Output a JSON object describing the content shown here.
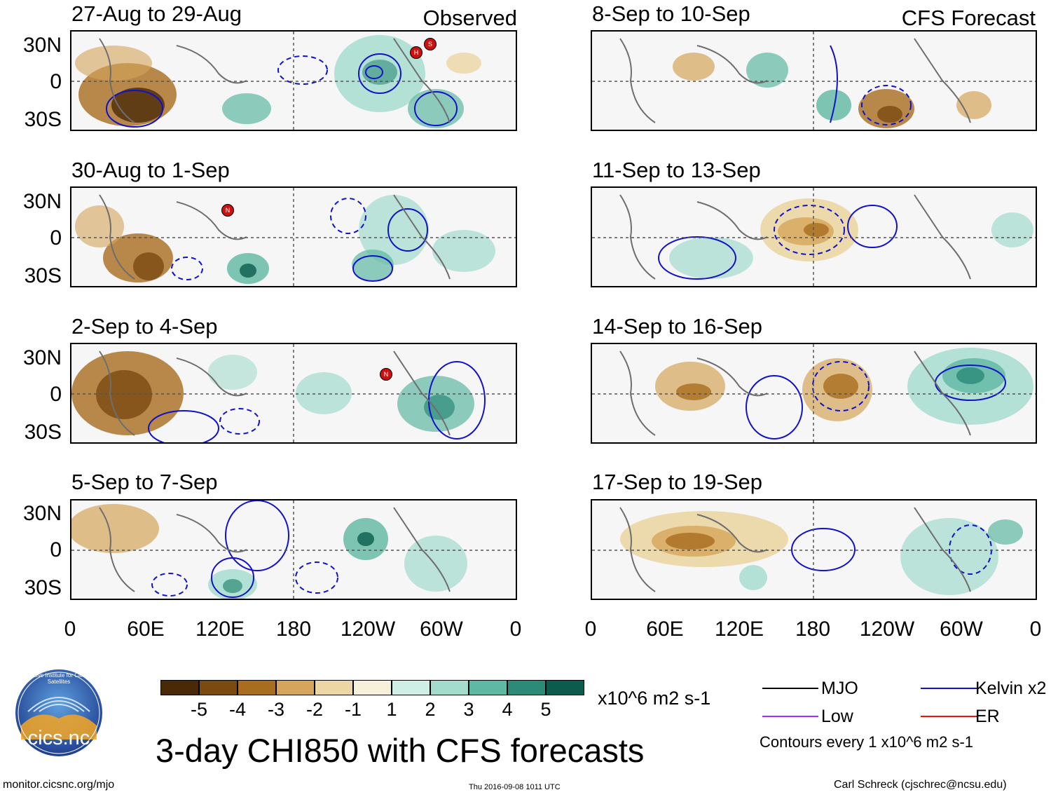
{
  "labels": {
    "observed": "Observed",
    "forecast": "CFS Forecast"
  },
  "panels_left": [
    {
      "title": "27-Aug to 29-Aug"
    },
    {
      "title": "30-Aug to 1-Sep"
    },
    {
      "title": "2-Sep to 4-Sep"
    },
    {
      "title": "5-Sep to 7-Sep"
    }
  ],
  "panels_right": [
    {
      "title": "8-Sep to 10-Sep"
    },
    {
      "title": "11-Sep to 13-Sep"
    },
    {
      "title": "14-Sep to 16-Sep"
    },
    {
      "title": "17-Sep to 19-Sep"
    }
  ],
  "lat_ticks": [
    "30N",
    "0",
    "30S"
  ],
  "lon_ticks": [
    "0",
    "60E",
    "120E",
    "180",
    "120W",
    "60W",
    "0"
  ],
  "storm_markers": [
    "H",
    "S",
    "N",
    "N"
  ],
  "colorbar": {
    "labels": [
      "-5",
      "-4",
      "-3",
      "-2",
      "-1",
      "1",
      "2",
      "3",
      "4",
      "5"
    ],
    "colors": [
      "#4a2a06",
      "#7a4a10",
      "#a86d1f",
      "#d4a55a",
      "#ecd7a4",
      "#f7f1dc",
      "#f5f5f5",
      "#cfeee6",
      "#a3dccd",
      "#5fb8a3",
      "#2c8a78",
      "#0b5c4c"
    ],
    "units": "x10^6 m2 s-1"
  },
  "legend": {
    "mjo": "MJO",
    "kelvin": "Kelvin x2",
    "low": "Low",
    "er": "ER",
    "note": "Contours every 1 x10^6 m2 s-1",
    "mjo_color": "#000000",
    "kelvin_color": "#1111cc",
    "low_color": "#9933ff",
    "er_color": "#ee1111"
  },
  "logo_text": "cics.nc",
  "logo_arc_text": "Cooperative Institute for Climate and Satellites",
  "main_title": "3-day CHI850 with CFS forecasts",
  "footer": {
    "url": "monitor.cicsnc.org/mjo",
    "timestamp": "Thu 2016-09-08 1011 UTC",
    "author": "Carl Schreck (cjschrec@ncsu.edu)"
  }
}
